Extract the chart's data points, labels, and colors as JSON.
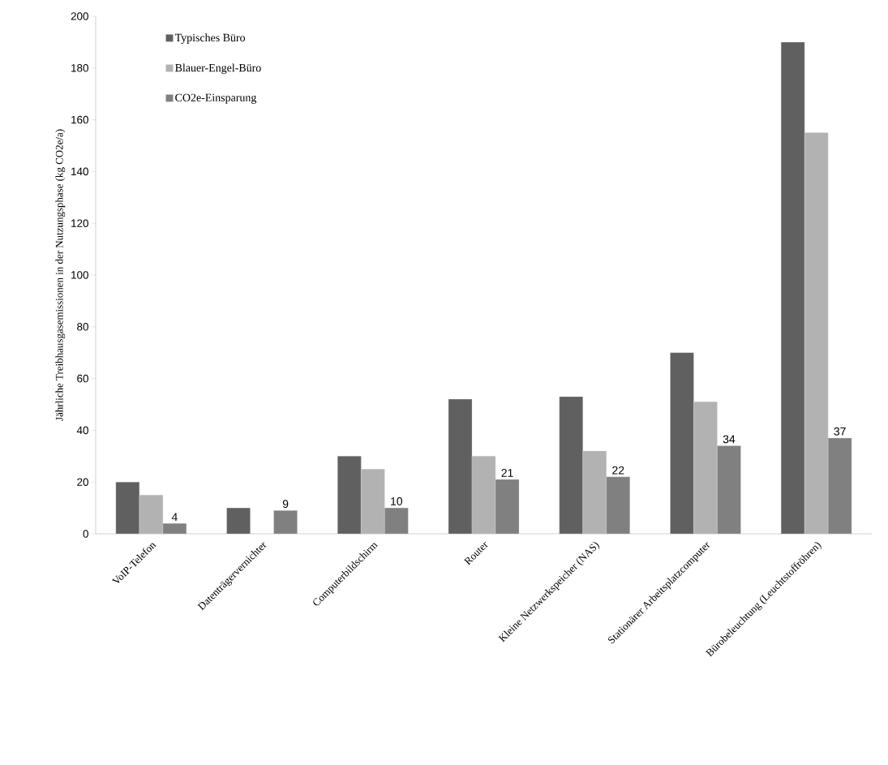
{
  "chart_data": {
    "type": "bar",
    "ylabel": "Jährliche Treibhausgasemissionen in der Nutzungsphase (kg CO2e/a)",
    "categories": [
      "VoIP-Telefon",
      "Datenträgervernichter",
      "Computerbildschirm",
      "Router",
      "Kleine Netzwerkspeicher (NAS)",
      "Stationärer Arbeitsplatzcomputer",
      "Bürobeleuchtung (Leuchtstoffröhren)"
    ],
    "series": [
      {
        "name": "Typisches Büro",
        "color": "#606060",
        "values": [
          20,
          10,
          30,
          52,
          53,
          70,
          190
        ]
      },
      {
        "name": "Blauer-Engel-Büro",
        "color": "#b2b2b2",
        "values": [
          15,
          null,
          25,
          30,
          32,
          51,
          155
        ]
      },
      {
        "name": "CO2e-Einsparung",
        "color": "#808080",
        "values": [
          4,
          9,
          10,
          21,
          22,
          34,
          37
        ],
        "value_labels": [
          "4",
          "9",
          "10",
          "21",
          "22",
          "34",
          "37"
        ]
      }
    ],
    "ylim": [
      0,
      200
    ],
    "yticks": [
      0,
      20,
      40,
      60,
      80,
      100,
      120,
      140,
      160,
      180,
      200
    ],
    "grid": false,
    "legend": "top left"
  }
}
